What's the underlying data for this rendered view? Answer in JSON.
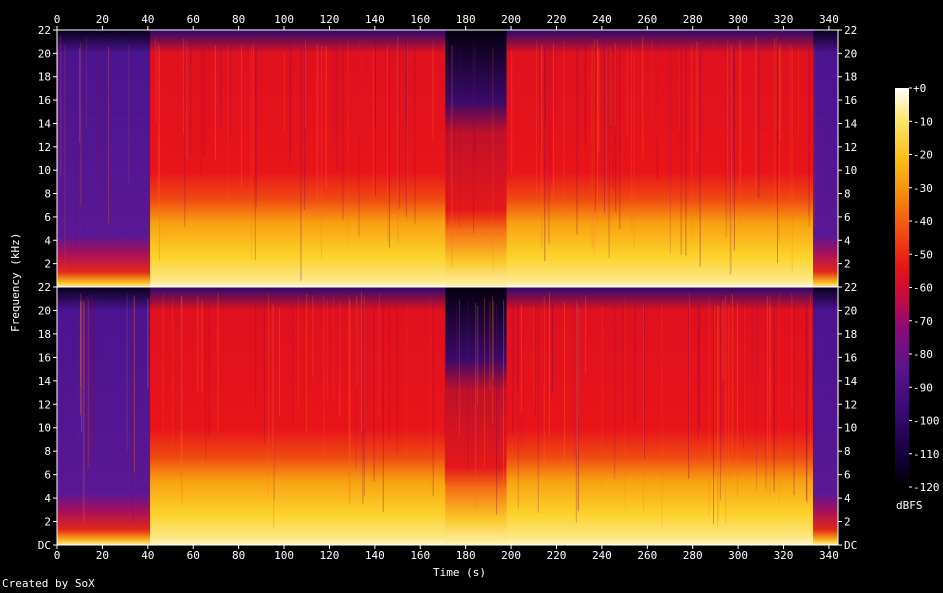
{
  "chart_data": {
    "type": "heatmap",
    "title": "",
    "xlabel": "Time (s)",
    "ylabel": "Frequency (kHz)",
    "xlim": [
      0,
      344
    ],
    "ylim_khz": [
      0,
      22
    ],
    "x_ticks": [
      "0",
      "20",
      "40",
      "60",
      "80",
      "100",
      "120",
      "140",
      "160",
      "180",
      "200",
      "220",
      "240",
      "260",
      "280",
      "300",
      "320",
      "340"
    ],
    "y_ticks": [
      "DC",
      "2",
      "4",
      "6",
      "8",
      "10",
      "12",
      "14",
      "16",
      "18",
      "20",
      "22"
    ],
    "channels": [
      {
        "name": "",
        "y_ticks": [
          "",
          "2",
          "4",
          "6",
          "8",
          "10",
          "12",
          "14",
          "16",
          "18",
          "20",
          "22"
        ]
      },
      {
        "name": "",
        "y_ticks": [
          "DC",
          "2",
          "4",
          "6",
          "8",
          "10",
          "12",
          "14",
          "16",
          "18",
          "20",
          "22"
        ]
      }
    ],
    "colorbar": {
      "unit": "dBFS",
      "range": [
        -120,
        0
      ],
      "ticks": [
        "+0",
        "-10",
        "-20",
        "-30",
        "-40",
        "-50",
        "-60",
        "-70",
        "-80",
        "-90",
        "-100",
        "-110",
        "-120"
      ],
      "palette": [
        "#000000",
        "#14003c",
        "#3c0a78",
        "#5a148c",
        "#8c0a78",
        "#c80a3c",
        "#e61414",
        "#f04614",
        "#f5820a",
        "#fabe14",
        "#fde66e",
        "#ffffff"
      ]
    },
    "segments": [
      {
        "start": 0,
        "end": 41,
        "level": "quiet"
      },
      {
        "start": 41,
        "end": 171,
        "level": "loud"
      },
      {
        "start": 171,
        "end": 198,
        "level": "breakdown"
      },
      {
        "start": 198,
        "end": 248,
        "level": "loud"
      },
      {
        "start": 248,
        "end": 333,
        "level": "loud"
      },
      {
        "start": 333,
        "end": 344,
        "level": "quiet"
      }
    ],
    "footer": "Created by SoX"
  }
}
